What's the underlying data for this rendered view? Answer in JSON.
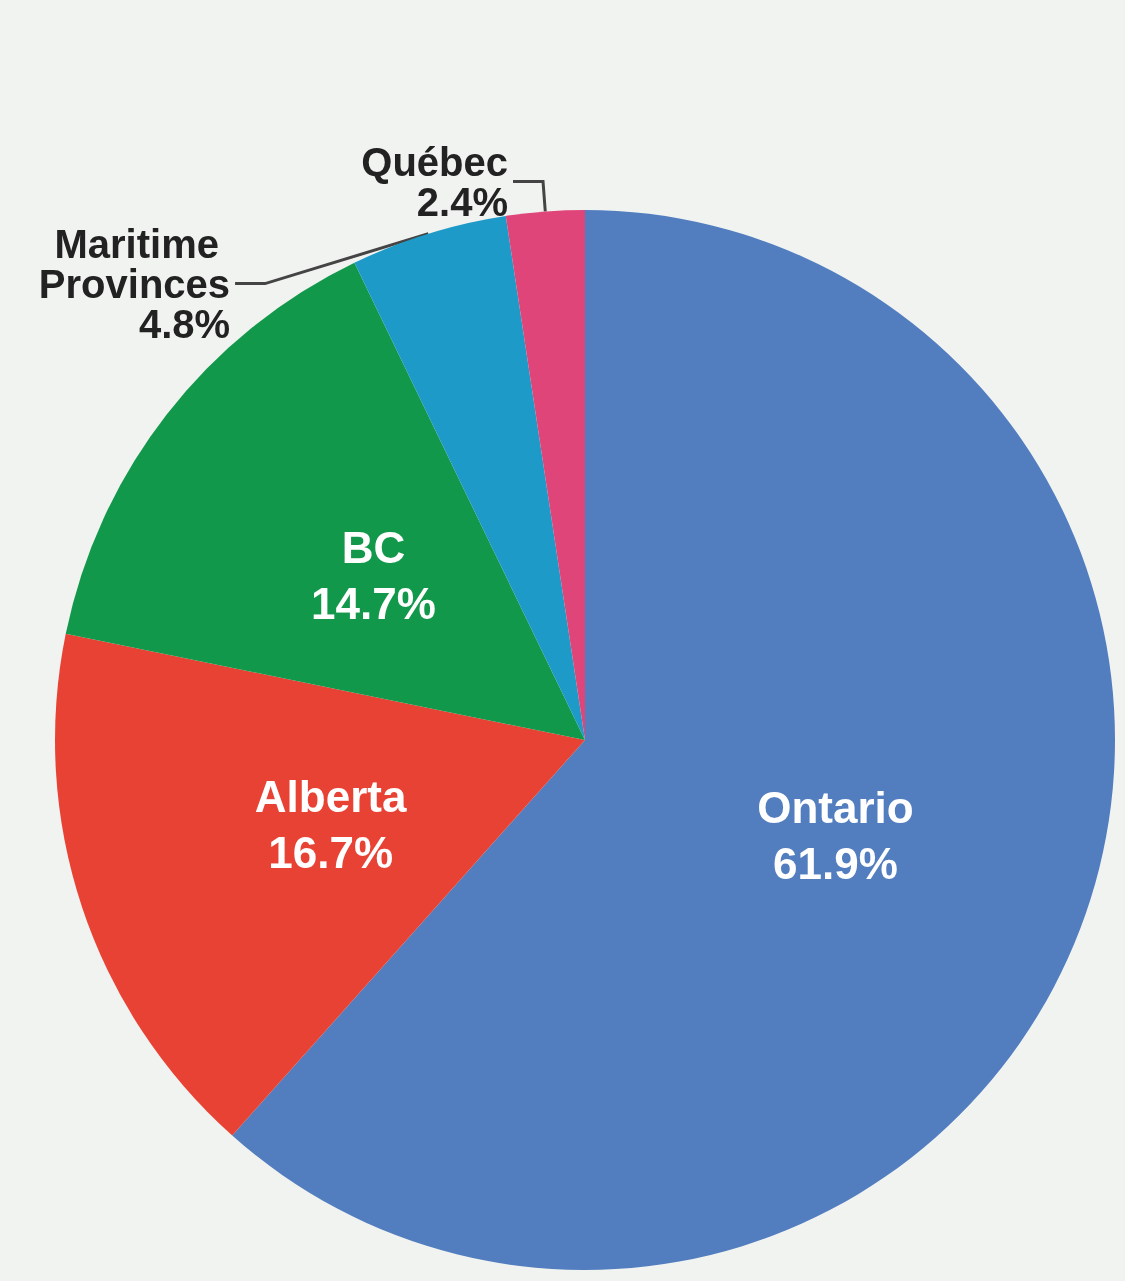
{
  "chart_data": {
    "type": "pie",
    "categories": [
      "Ontario",
      "Alberta",
      "BC",
      "Maritime Provinces",
      "Québec"
    ],
    "values": [
      61.9,
      16.7,
      14.7,
      4.8,
      2.4
    ],
    "value_labels": [
      "61.9%",
      "16.7%",
      "14.7%",
      "4.8%",
      "2.4%"
    ],
    "colors": [
      "#527dbf",
      "#e84234",
      "#12984a",
      "#1e9ac8",
      "#e0457a"
    ],
    "legend": false
  }
}
